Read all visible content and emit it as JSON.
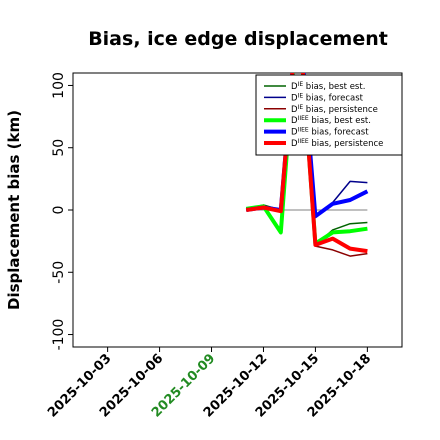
{
  "chart_data": {
    "type": "line",
    "title": "Bias, ice edge displacement",
    "ylabel": "Displacement bias (km)",
    "xlabel": "",
    "ylim": [
      -110,
      110
    ],
    "xlim": [
      "2025-10-01",
      "2025-10-20"
    ],
    "x_ticks": [
      "2025-10-03",
      "2025-10-06",
      "2025-10-09",
      "2025-10-12",
      "2025-10-15",
      "2025-10-18"
    ],
    "x_tick_colors": [
      "#000000",
      "#000000",
      "#228b22",
      "#000000",
      "#000000",
      "#000000"
    ],
    "y_ticks": [
      -100,
      -50,
      0,
      50,
      100
    ],
    "zero_line": true,
    "grid": false,
    "legend_position": "top-right",
    "x": [
      "2025-10-11",
      "2025-10-12",
      "2025-10-13",
      "2025-10-14",
      "2025-10-15",
      "2025-10-16",
      "2025-10-17",
      "2025-10-18"
    ],
    "series": [
      {
        "name": "D^IE bias, best est.",
        "legend_main": "D",
        "legend_sup": "IE",
        "legend_rest": " bias, best est.",
        "color": "#006400",
        "width": 1.5,
        "values": [
          1,
          4,
          0,
          165,
          -28,
          -16,
          -11,
          -10
        ]
      },
      {
        "name": "D^IE bias, forecast",
        "legend_main": "D",
        "legend_sup": "IE",
        "legend_rest": " bias, forecast",
        "color": "#00008b",
        "width": 1.5,
        "values": [
          0,
          2,
          0,
          165,
          -6,
          6,
          23,
          22
        ]
      },
      {
        "name": "D^IE bias, persistence",
        "legend_main": "D",
        "legend_sup": "IE",
        "legend_rest": " bias, persistence",
        "color": "#8b0000",
        "width": 1.5,
        "values": [
          0,
          2,
          -1,
          165,
          -29,
          -32,
          -37,
          -35
        ]
      },
      {
        "name": "D^IIEE bias, best est.",
        "legend_main": "D",
        "legend_sup": "IIEE",
        "legend_rest": " bias, best est.",
        "color": "#00ff00",
        "width": 4,
        "values": [
          1,
          3,
          -18,
          165,
          -27,
          -18,
          -17,
          -15
        ]
      },
      {
        "name": "D^IIEE bias, forecast",
        "legend_main": "D",
        "legend_sup": "IIEE",
        "legend_rest": " bias, forecast",
        "color": "#0000ff",
        "width": 4,
        "values": [
          0,
          2,
          0,
          165,
          -5,
          5,
          8,
          15
        ]
      },
      {
        "name": "D^IIEE bias, persistence",
        "legend_main": "D",
        "legend_sup": "IIEE",
        "legend_rest": " bias, persistence",
        "color": "#ff0000",
        "width": 4,
        "values": [
          0,
          2,
          -1,
          165,
          -28,
          -23,
          -31,
          -33
        ]
      }
    ]
  }
}
